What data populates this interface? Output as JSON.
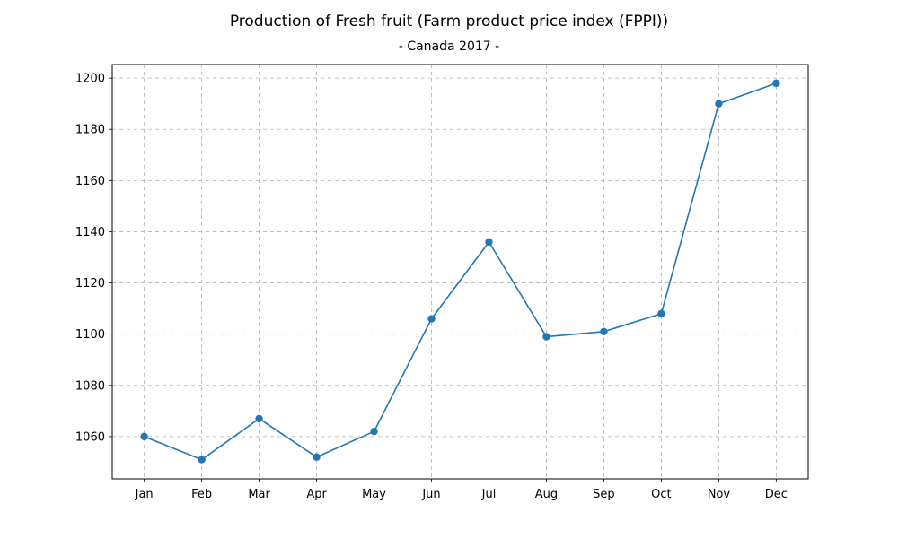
{
  "chart_data": {
    "type": "line",
    "title": "Production of Fresh fruit (Farm product price index (FPPI))",
    "subtitle": "- Canada 2017 -",
    "xlabel": "",
    "ylabel": "",
    "categories": [
      "Jan",
      "Feb",
      "Mar",
      "Apr",
      "May",
      "Jun",
      "Jul",
      "Aug",
      "Sep",
      "Oct",
      "Nov",
      "Dec"
    ],
    "series": [
      {
        "values": [
          1060,
          1051,
          1067,
          1052,
          1062,
          1106,
          1136,
          1099,
          1101,
          1108,
          1190,
          1198
        ],
        "color": "#1f77b4"
      }
    ],
    "ylim": [
      1043.5,
      1205.3
    ],
    "yticks": [
      1060,
      1080,
      1100,
      1120,
      1140,
      1160,
      1180,
      1200
    ],
    "grid": true,
    "legend": "none",
    "marker": "circle"
  }
}
